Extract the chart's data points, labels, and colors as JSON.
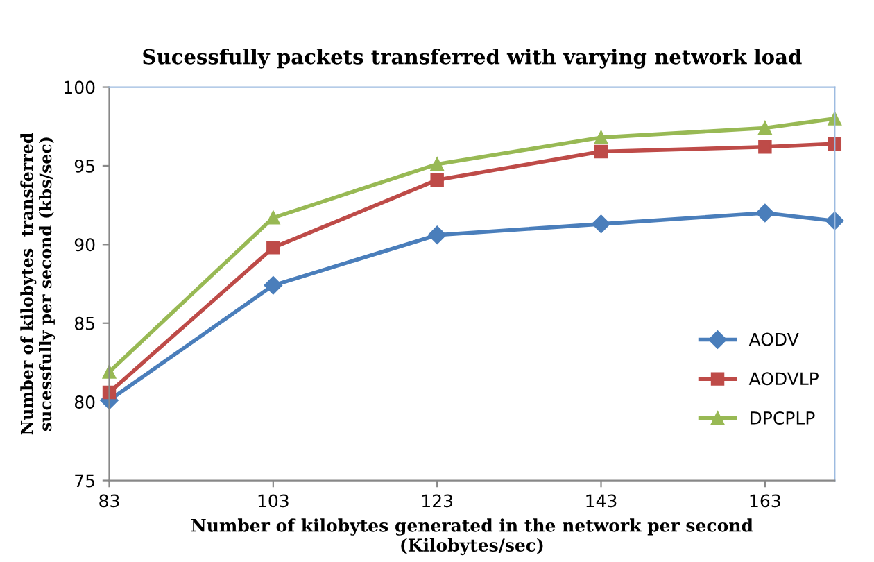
{
  "chart_data": {
    "type": "line",
    "title": "Sucessfully packets transferred with varying network load",
    "xlabel": "Number of kilobytes generated in the network per second\n(Kilobytes/sec)",
    "ylabel": "Number of kilobytes  transferred\nsucessfully per second (kbs/sec)",
    "x": [
      83,
      103,
      123,
      143,
      163,
      171.5
    ],
    "series": [
      {
        "name": "AODV",
        "color": "#4a7ebb",
        "marker": "diamond",
        "values": [
          80.1,
          87.4,
          90.6,
          91.3,
          92.0,
          91.5
        ]
      },
      {
        "name": "AODVLP",
        "color": "#be4b48",
        "marker": "square",
        "values": [
          80.6,
          89.8,
          94.1,
          95.9,
          96.2,
          96.4
        ]
      },
      {
        "name": "DPCPLP",
        "color": "#98b954",
        "marker": "triangle",
        "values": [
          81.9,
          91.7,
          95.1,
          96.8,
          97.4,
          98.0
        ]
      }
    ],
    "xlim": [
      83,
      171.5
    ],
    "xticks": [
      83,
      103,
      123,
      143,
      163
    ],
    "ylim": [
      75,
      100
    ],
    "yticks": [
      75,
      80,
      85,
      90,
      95,
      100
    ],
    "grid": false,
    "legend": "right"
  }
}
